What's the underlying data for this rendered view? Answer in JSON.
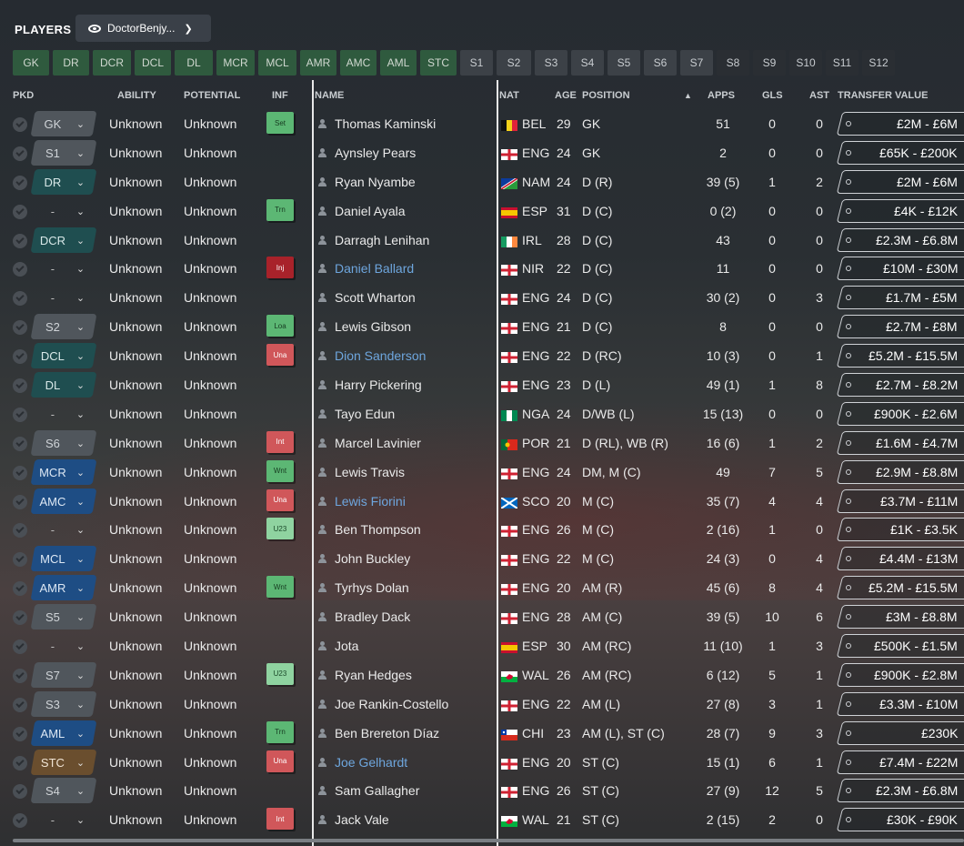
{
  "header": {
    "title": "PLAYERS",
    "view": "DoctorBenjy..."
  },
  "positions": [
    {
      "label": "GK",
      "kind": "g",
      "w": 40
    },
    {
      "label": "DR",
      "kind": "g",
      "w": 40
    },
    {
      "label": "DCR",
      "kind": "g",
      "w": 42
    },
    {
      "label": "DCL",
      "kind": "g",
      "w": 40
    },
    {
      "label": "DL",
      "kind": "g",
      "w": 42
    },
    {
      "label": "MCR",
      "kind": "g",
      "w": 42
    },
    {
      "label": "MCL",
      "kind": "g",
      "w": 42
    },
    {
      "label": "AMR",
      "kind": "g",
      "w": 40
    },
    {
      "label": "AMC",
      "kind": "g",
      "w": 40
    },
    {
      "label": "AML",
      "kind": "g",
      "w": 40
    },
    {
      "label": "STC",
      "kind": "g",
      "w": 40
    },
    {
      "label": "S1",
      "kind": "s",
      "w": 36
    },
    {
      "label": "S2",
      "kind": "s",
      "w": 38
    },
    {
      "label": "S3",
      "kind": "s",
      "w": 36
    },
    {
      "label": "S4",
      "kind": "s",
      "w": 36
    },
    {
      "label": "S5",
      "kind": "s",
      "w": 36
    },
    {
      "label": "S6",
      "kind": "s",
      "w": 36
    },
    {
      "label": "S7",
      "kind": "s",
      "w": 36
    },
    {
      "label": "S8",
      "kind": "sd",
      "w": 36
    },
    {
      "label": "S9",
      "kind": "sd",
      "w": 36
    },
    {
      "label": "S10",
      "kind": "sd",
      "w": 36
    },
    {
      "label": "S11",
      "kind": "sd",
      "w": 36
    },
    {
      "label": "S12",
      "kind": "sd",
      "w": 36
    }
  ],
  "columns": {
    "pkd": "PKD",
    "ability": "ABILITY",
    "potential": "POTENTIAL",
    "inf": "INF",
    "name": "NAME",
    "nat": "NAT",
    "age": "AGE",
    "position": "POSITION",
    "apps": "APPS",
    "gls": "GLS",
    "ast": "AST",
    "transfer_value": "TRANSFER VALUE"
  },
  "rows": [
    {
      "pkd": "GK",
      "pk": "gk",
      "ability": "Unknown",
      "potential": "Unknown",
      "inf": "Set",
      "infc": "gr",
      "name": "Thomas Kaminski",
      "link": false,
      "flag": "bel",
      "nat": "BEL",
      "age": "29",
      "position": "GK",
      "apps": "51",
      "gls": "0",
      "ast": "0",
      "value": "£2M - £6M"
    },
    {
      "pkd": "S1",
      "pk": "sub",
      "ability": "Unknown",
      "potential": "Unknown",
      "inf": "",
      "infc": "",
      "name": "Aynsley Pears",
      "link": false,
      "flag": "eng",
      "nat": "ENG",
      "age": "24",
      "position": "GK",
      "apps": "2",
      "gls": "0",
      "ast": "0",
      "value": "£65K - £200K"
    },
    {
      "pkd": "DR",
      "pk": "def",
      "ability": "Unknown",
      "potential": "Unknown",
      "inf": "",
      "infc": "",
      "name": "Ryan Nyambe",
      "link": false,
      "flag": "nam",
      "nat": "NAM",
      "age": "24",
      "position": "D (R)",
      "apps": "39 (5)",
      "gls": "1",
      "ast": "2",
      "value": "£2M - £6M"
    },
    {
      "pkd": "-",
      "pk": "none",
      "ability": "Unknown",
      "potential": "Unknown",
      "inf": "Trn",
      "infc": "gr",
      "name": "Daniel Ayala",
      "link": false,
      "flag": "esp",
      "nat": "ESP",
      "age": "31",
      "position": "D (C)",
      "apps": "0 (2)",
      "gls": "0",
      "ast": "0",
      "value": "£4K - £12K"
    },
    {
      "pkd": "DCR",
      "pk": "def",
      "ability": "Unknown",
      "potential": "Unknown",
      "inf": "",
      "infc": "",
      "name": "Darragh Lenihan",
      "link": false,
      "flag": "irl",
      "nat": "IRL",
      "age": "28",
      "position": "D (C)",
      "apps": "43",
      "gls": "0",
      "ast": "0",
      "value": "£2.3M - £6.8M"
    },
    {
      "pkd": "-",
      "pk": "none",
      "ability": "Unknown",
      "potential": "Unknown",
      "inf": "Inj",
      "infc": "dr",
      "name": "Daniel Ballard",
      "link": true,
      "flag": "nir",
      "nat": "NIR",
      "age": "22",
      "position": "D (C)",
      "apps": "11",
      "gls": "0",
      "ast": "0",
      "value": "£10M - £30M"
    },
    {
      "pkd": "-",
      "pk": "none",
      "ability": "Unknown",
      "potential": "Unknown",
      "inf": "",
      "infc": "",
      "name": "Scott Wharton",
      "link": false,
      "flag": "eng",
      "nat": "ENG",
      "age": "24",
      "position": "D (C)",
      "apps": "30 (2)",
      "gls": "0",
      "ast": "3",
      "value": "£1.7M - £5M"
    },
    {
      "pkd": "S2",
      "pk": "sub",
      "ability": "Unknown",
      "potential": "Unknown",
      "inf": "Loa",
      "infc": "gr",
      "name": "Lewis Gibson",
      "link": false,
      "flag": "eng",
      "nat": "ENG",
      "age": "21",
      "position": "D (C)",
      "apps": "8",
      "gls": "0",
      "ast": "0",
      "value": "£2.7M - £8M"
    },
    {
      "pkd": "DCL",
      "pk": "def",
      "ability": "Unknown",
      "potential": "Unknown",
      "inf": "Una",
      "infc": "rd",
      "name": "Dion Sanderson",
      "link": true,
      "flag": "eng",
      "nat": "ENG",
      "age": "22",
      "position": "D (RC)",
      "apps": "10 (3)",
      "gls": "0",
      "ast": "1",
      "value": "£5.2M - £15.5M"
    },
    {
      "pkd": "DL",
      "pk": "def",
      "ability": "Unknown",
      "potential": "Unknown",
      "inf": "",
      "infc": "",
      "name": "Harry Pickering",
      "link": false,
      "flag": "eng",
      "nat": "ENG",
      "age": "23",
      "position": "D (L)",
      "apps": "49 (1)",
      "gls": "1",
      "ast": "8",
      "value": "£2.7M - £8.2M"
    },
    {
      "pkd": "-",
      "pk": "none",
      "ability": "Unknown",
      "potential": "Unknown",
      "inf": "",
      "infc": "",
      "name": "Tayo Edun",
      "link": false,
      "flag": "nga",
      "nat": "NGA",
      "age": "24",
      "position": "D/WB (L)",
      "apps": "15 (13)",
      "gls": "0",
      "ast": "0",
      "value": "£900K - £2.6M"
    },
    {
      "pkd": "S6",
      "pk": "sub",
      "ability": "Unknown",
      "potential": "Unknown",
      "inf": "Int",
      "infc": "rd",
      "name": "Marcel Lavinier",
      "link": false,
      "flag": "por",
      "nat": "POR",
      "age": "21",
      "position": "D (RL), WB (R)",
      "apps": "16 (6)",
      "gls": "1",
      "ast": "2",
      "value": "£1.6M - £4.7M"
    },
    {
      "pkd": "MCR",
      "pk": "mid",
      "ability": "Unknown",
      "potential": "Unknown",
      "inf": "Wnt",
      "infc": "gr",
      "name": "Lewis Travis",
      "link": false,
      "flag": "eng",
      "nat": "ENG",
      "age": "24",
      "position": "DM, M (C)",
      "apps": "49",
      "gls": "7",
      "ast": "5",
      "value": "£2.9M - £8.8M"
    },
    {
      "pkd": "AMC",
      "pk": "mid",
      "ability": "Unknown",
      "potential": "Unknown",
      "inf": "Una",
      "infc": "rd",
      "name": "Lewis Fiorini",
      "link": true,
      "flag": "sco",
      "nat": "SCO",
      "age": "20",
      "position": "M (C)",
      "apps": "35 (7)",
      "gls": "4",
      "ast": "4",
      "value": "£3.7M - £11M"
    },
    {
      "pkd": "-",
      "pk": "none",
      "ability": "Unknown",
      "potential": "Unknown",
      "inf": "U23",
      "infc": "lg",
      "name": "Ben Thompson",
      "link": false,
      "flag": "eng",
      "nat": "ENG",
      "age": "26",
      "position": "M (C)",
      "apps": "2 (16)",
      "gls": "1",
      "ast": "0",
      "value": "£1K - £3.5K"
    },
    {
      "pkd": "MCL",
      "pk": "mid",
      "ability": "Unknown",
      "potential": "Unknown",
      "inf": "",
      "infc": "",
      "name": "John Buckley",
      "link": false,
      "flag": "eng",
      "nat": "ENG",
      "age": "22",
      "position": "M (C)",
      "apps": "24 (3)",
      "gls": "0",
      "ast": "4",
      "value": "£4.4M - £13M"
    },
    {
      "pkd": "AMR",
      "pk": "mid",
      "ability": "Unknown",
      "potential": "Unknown",
      "inf": "Wnt",
      "infc": "gr",
      "name": "Tyrhys Dolan",
      "link": false,
      "flag": "eng",
      "nat": "ENG",
      "age": "20",
      "position": "AM (R)",
      "apps": "45 (6)",
      "gls": "8",
      "ast": "4",
      "value": "£5.2M - £15.5M"
    },
    {
      "pkd": "S5",
      "pk": "sub",
      "ability": "Unknown",
      "potential": "Unknown",
      "inf": "",
      "infc": "",
      "name": "Bradley Dack",
      "link": false,
      "flag": "eng",
      "nat": "ENG",
      "age": "28",
      "position": "AM (C)",
      "apps": "39 (5)",
      "gls": "10",
      "ast": "6",
      "value": "£3M - £8.8M"
    },
    {
      "pkd": "-",
      "pk": "none",
      "ability": "Unknown",
      "potential": "Unknown",
      "inf": "",
      "infc": "",
      "name": "Jota",
      "link": false,
      "flag": "esp",
      "nat": "ESP",
      "age": "30",
      "position": "AM (RC)",
      "apps": "11 (10)",
      "gls": "1",
      "ast": "3",
      "value": "£500K - £1.5M"
    },
    {
      "pkd": "S7",
      "pk": "sub",
      "ability": "Unknown",
      "potential": "Unknown",
      "inf": "U23",
      "infc": "lg",
      "name": "Ryan Hedges",
      "link": false,
      "flag": "wal",
      "nat": "WAL",
      "age": "26",
      "position": "AM (RC)",
      "apps": "6 (12)",
      "gls": "5",
      "ast": "1",
      "value": "£900K - £2.8M"
    },
    {
      "pkd": "S3",
      "pk": "sub",
      "ability": "Unknown",
      "potential": "Unknown",
      "inf": "",
      "infc": "",
      "name": "Joe Rankin-Costello",
      "link": false,
      "flag": "eng",
      "nat": "ENG",
      "age": "22",
      "position": "AM (L)",
      "apps": "27 (8)",
      "gls": "3",
      "ast": "1",
      "value": "£3.3M - £10M"
    },
    {
      "pkd": "AML",
      "pk": "mid",
      "ability": "Unknown",
      "potential": "Unknown",
      "inf": "Trn",
      "infc": "gr",
      "name": "Ben Brereton Díaz",
      "link": false,
      "flag": "chi",
      "nat": "CHI",
      "age": "23",
      "position": "AM (L), ST (C)",
      "apps": "28 (7)",
      "gls": "9",
      "ast": "3",
      "value": "£230K"
    },
    {
      "pkd": "STC",
      "pk": "att",
      "ability": "Unknown",
      "potential": "Unknown",
      "inf": "Una",
      "infc": "rd",
      "name": "Joe Gelhardt",
      "link": true,
      "flag": "eng",
      "nat": "ENG",
      "age": "20",
      "position": "ST (C)",
      "apps": "15 (1)",
      "gls": "6",
      "ast": "1",
      "value": "£7.4M - £22M"
    },
    {
      "pkd": "S4",
      "pk": "sub",
      "ability": "Unknown",
      "potential": "Unknown",
      "inf": "",
      "infc": "",
      "name": "Sam Gallagher",
      "link": false,
      "flag": "eng",
      "nat": "ENG",
      "age": "26",
      "position": "ST (C)",
      "apps": "27 (9)",
      "gls": "12",
      "ast": "5",
      "value": "£2.3M - £6.8M"
    },
    {
      "pkd": "-",
      "pk": "none",
      "ability": "Unknown",
      "potential": "Unknown",
      "inf": "Int",
      "infc": "rd",
      "name": "Jack Vale",
      "link": false,
      "flag": "wal",
      "nat": "WAL",
      "age": "21",
      "position": "ST (C)",
      "apps": "2 (15)",
      "gls": "2",
      "ast": "0",
      "value": "£30K - £90K"
    }
  ]
}
